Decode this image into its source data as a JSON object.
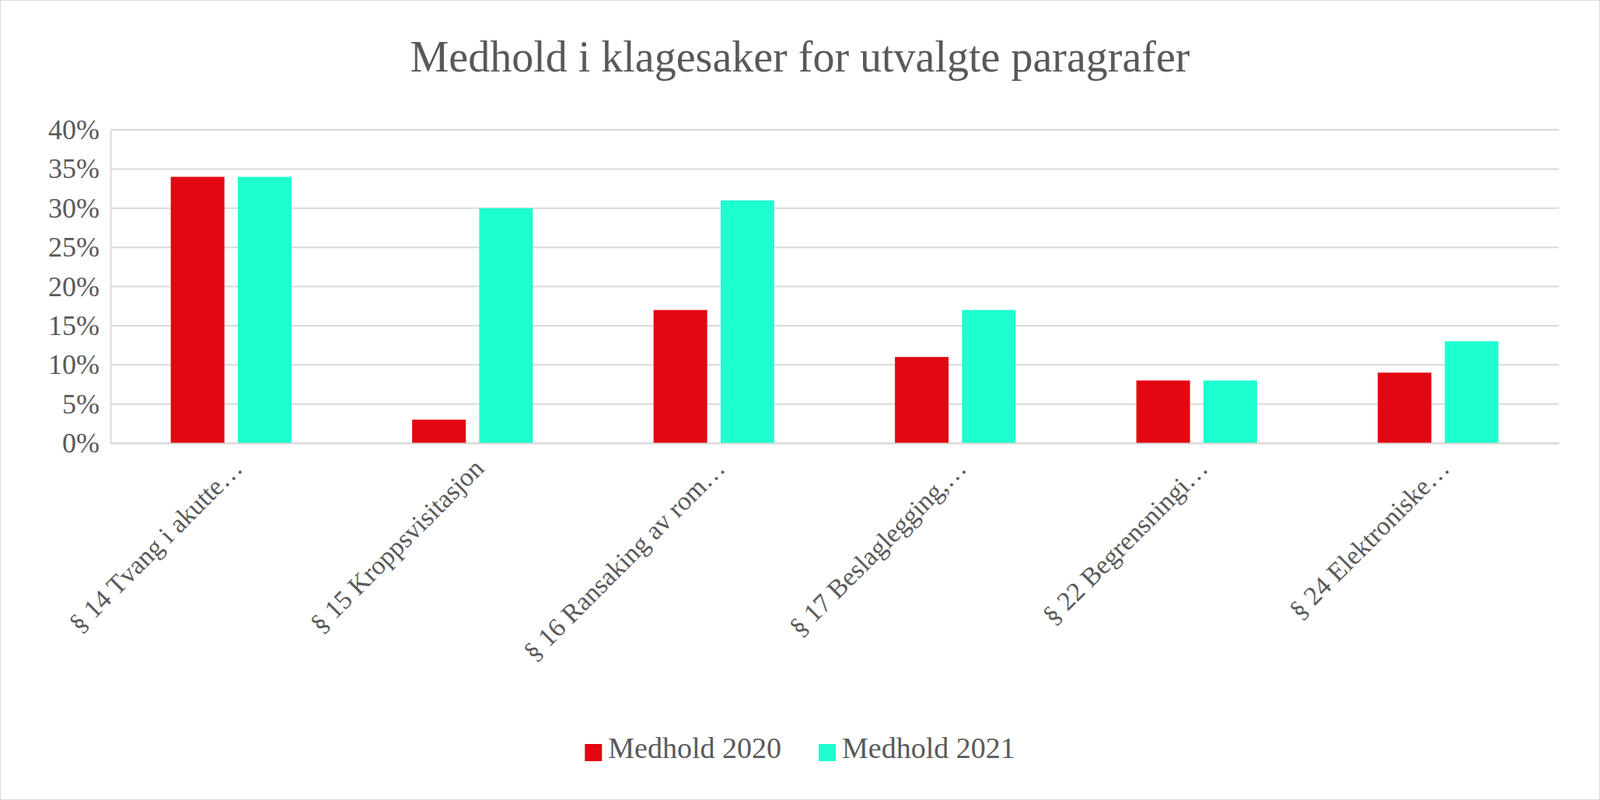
{
  "chart_data": {
    "type": "bar",
    "title": "Medhold i klagesaker for utvalgte paragrafer",
    "categories": [
      "§ 14 Tvang i akutte…",
      "§ 15 Kroppsvisitasjon",
      "§ 16 Ransaking av rom…",
      "§ 17 Beslaglegging,…",
      "§ 22 Begrensningi…",
      "§ 24 Elektroniske…"
    ],
    "series": [
      {
        "name": "Medhold 2020",
        "color": "#e30613",
        "values": [
          34,
          3,
          17,
          11,
          8,
          9
        ]
      },
      {
        "name": "Medhold 2021",
        "color": "#1effd0",
        "values": [
          34,
          30,
          31,
          17,
          8,
          13
        ]
      }
    ],
    "ylim": [
      0,
      40
    ],
    "yticks": [
      {
        "value": 0,
        "label": "0%"
      },
      {
        "value": 5,
        "label": "5%"
      },
      {
        "value": 10,
        "label": "10%"
      },
      {
        "value": 15,
        "label": "15%"
      },
      {
        "value": 20,
        "label": "20%"
      },
      {
        "value": 25,
        "label": "25%"
      },
      {
        "value": 30,
        "label": "30%"
      },
      {
        "value": 35,
        "label": "35%"
      },
      {
        "value": 40,
        "label": "40%"
      }
    ],
    "grid": true,
    "legend": "bottom"
  }
}
